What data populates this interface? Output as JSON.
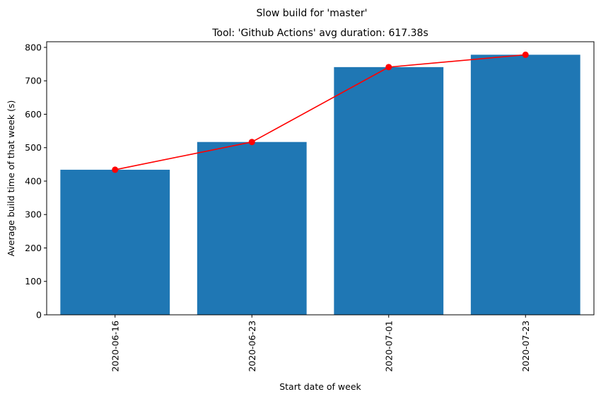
{
  "chart_data": {
    "type": "bar",
    "suptitle": "Slow build for 'master'",
    "title": "Tool: 'Github Actions' avg duration: 617.38s",
    "xlabel": "Start date of week",
    "ylabel": "Average build time of that week (s)",
    "categories": [
      "2020-06-16",
      "2020-06-23",
      "2020-07-01",
      "2020-07-23"
    ],
    "values": [
      434,
      517,
      741,
      778
    ],
    "line_values": [
      434,
      517,
      741,
      778
    ],
    "ylim": [
      0,
      816.9
    ],
    "yticks": [
      0,
      100,
      200,
      300,
      400,
      500,
      600,
      700,
      800
    ],
    "bar_color": "#1f77b4",
    "line_color": "#ff0000",
    "grid": false,
    "legend": "none"
  }
}
